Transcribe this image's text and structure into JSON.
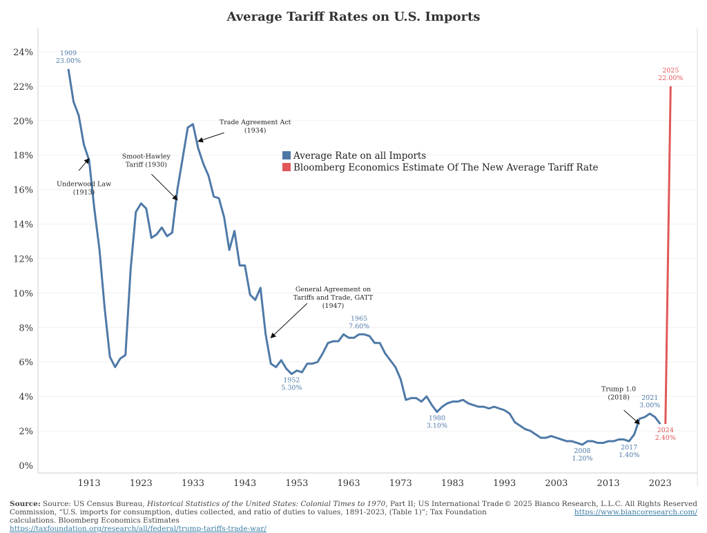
{
  "chart_data": {
    "type": "line",
    "title": "Average Tariff Rates on U.S. Imports",
    "xlabel": "",
    "ylabel": "",
    "xlim": [
      1905,
      2030
    ],
    "ylim": [
      0,
      24
    ],
    "grid": true,
    "x_ticks": [
      1913,
      1923,
      1933,
      1943,
      1953,
      1963,
      1973,
      1983,
      1993,
      2003,
      2013,
      2023
    ],
    "y_ticks": [
      0,
      2,
      4,
      6,
      8,
      10,
      12,
      14,
      16,
      18,
      20,
      22,
      24
    ],
    "y_tick_labels": [
      "0%",
      "2%",
      "4%",
      "6%",
      "8%",
      "10%",
      "12%",
      "14%",
      "16%",
      "18%",
      "20%",
      "22%",
      "24%"
    ],
    "legend_position": "center",
    "series": [
      {
        "name": "Average Rate on all Imports",
        "color": "#4e79a7",
        "x": [
          1909,
          1910,
          1911,
          1912,
          1913,
          1914,
          1915,
          1916,
          1917,
          1918,
          1919,
          1920,
          1921,
          1922,
          1923,
          1924,
          1925,
          1926,
          1927,
          1928,
          1929,
          1930,
          1931,
          1932,
          1933,
          1934,
          1935,
          1936,
          1937,
          1938,
          1939,
          1940,
          1941,
          1942,
          1943,
          1944,
          1945,
          1946,
          1947,
          1948,
          1949,
          1950,
          1951,
          1952,
          1953,
          1954,
          1955,
          1956,
          1957,
          1958,
          1959,
          1960,
          1961,
          1962,
          1963,
          1964,
          1965,
          1966,
          1967,
          1968,
          1969,
          1970,
          1971,
          1972,
          1973,
          1974,
          1975,
          1976,
          1977,
          1978,
          1979,
          1980,
          1981,
          1982,
          1983,
          1984,
          1985,
          1986,
          1987,
          1988,
          1989,
          1990,
          1991,
          1992,
          1993,
          1994,
          1995,
          1996,
          1997,
          1998,
          1999,
          2000,
          2001,
          2002,
          2003,
          2004,
          2005,
          2006,
          2007,
          2008,
          2009,
          2010,
          2011,
          2012,
          2013,
          2014,
          2015,
          2016,
          2017,
          2018,
          2019,
          2020,
          2021,
          2022,
          2023
        ],
        "values": [
          23.0,
          21.1,
          20.3,
          18.6,
          17.7,
          14.9,
          12.5,
          9.1,
          6.3,
          5.7,
          6.2,
          6.4,
          11.4,
          14.7,
          15.2,
          14.9,
          13.2,
          13.4,
          13.8,
          13.3,
          13.5,
          16.0,
          17.8,
          19.6,
          19.8,
          18.4,
          17.5,
          16.8,
          15.6,
          15.5,
          14.4,
          12.5,
          13.6,
          11.6,
          11.6,
          9.9,
          9.6,
          10.3,
          7.6,
          5.9,
          5.7,
          6.1,
          5.6,
          5.3,
          5.5,
          5.4,
          5.9,
          5.9,
          6.0,
          6.5,
          7.1,
          7.2,
          7.2,
          7.6,
          7.4,
          7.4,
          7.6,
          7.6,
          7.5,
          7.1,
          7.1,
          6.5,
          6.1,
          5.7,
          5.0,
          3.8,
          3.9,
          3.9,
          3.7,
          4.0,
          3.5,
          3.1,
          3.4,
          3.6,
          3.7,
          3.7,
          3.8,
          3.6,
          3.5,
          3.4,
          3.4,
          3.3,
          3.4,
          3.3,
          3.2,
          3.0,
          2.5,
          2.3,
          2.1,
          2.0,
          1.8,
          1.6,
          1.6,
          1.7,
          1.6,
          1.5,
          1.4,
          1.4,
          1.3,
          1.2,
          1.4,
          1.4,
          1.3,
          1.3,
          1.4,
          1.4,
          1.5,
          1.5,
          1.4,
          1.8,
          2.7,
          2.8,
          3.0,
          2.8,
          2.4
        ]
      },
      {
        "name": "Bloomberg Economics Estimate Of The New Average Tariff Rate",
        "color": "#e15759",
        "x": [
          2024,
          2025
        ],
        "values": [
          2.4,
          22.0
        ]
      }
    ],
    "point_labels": [
      {
        "year": "1909",
        "value": "23.00%",
        "x": 1909,
        "y": 23.0,
        "color": "#4e79a7",
        "pos": "above"
      },
      {
        "year": "1952",
        "value": "5.30%",
        "x": 1952,
        "y": 5.3,
        "color": "#4e79a7",
        "pos": "below"
      },
      {
        "year": "1965",
        "value": "7.60%",
        "x": 1965,
        "y": 7.6,
        "color": "#4e79a7",
        "pos": "above"
      },
      {
        "year": "1980",
        "value": "3.10%",
        "x": 1980,
        "y": 3.1,
        "color": "#4e79a7",
        "pos": "below"
      },
      {
        "year": "2008",
        "value": "1.20%",
        "x": 2008,
        "y": 1.2,
        "color": "#4e79a7",
        "pos": "below"
      },
      {
        "year": "2017",
        "value": "1.40%",
        "x": 2017,
        "y": 1.4,
        "color": "#4e79a7",
        "pos": "below"
      },
      {
        "year": "2021",
        "value": "3.00%",
        "x": 2021,
        "y": 3.0,
        "color": "#4e79a7",
        "pos": "above"
      },
      {
        "year": "2024",
        "value": "2.40%",
        "x": 2024,
        "y": 2.4,
        "color": "#e15759",
        "pos": "below"
      },
      {
        "year": "2025",
        "value": "22.00%",
        "x": 2025,
        "y": 22.0,
        "color": "#e15759",
        "pos": "above"
      }
    ],
    "annotations": [
      {
        "lines": [
          "Underwood Law",
          "(1913)"
        ],
        "text_at": [
          1912,
          16.2
        ],
        "arrow_from": [
          1911,
          17.1
        ],
        "arrow_to": [
          1913,
          17.8
        ]
      },
      {
        "lines": [
          "Smoot-Hawley",
          "Tariff (1930)"
        ],
        "text_at": [
          1924,
          17.8
        ],
        "arrow_from": [
          1925,
          16.9
        ],
        "arrow_to": [
          1930,
          15.4
        ]
      },
      {
        "lines": [
          "Trade Agreement Act",
          "(1934)"
        ],
        "text_at": [
          1945,
          19.8
        ],
        "arrow_from": [
          1939,
          19.3
        ],
        "arrow_to": [
          1934,
          18.8
        ]
      },
      {
        "lines": [
          "General Agreement on",
          "Tariffs and Trade, GATT",
          "(1947)"
        ],
        "text_at": [
          1960,
          10.1
        ],
        "arrow_from": [
          1955,
          9.4
        ],
        "arrow_to": [
          1948,
          7.4
        ]
      },
      {
        "lines": [
          "Trump 1.0",
          "(2018)"
        ],
        "text_at": [
          2015,
          4.3
        ],
        "arrow_from": [
          2016,
          3.2
        ],
        "arrow_to": [
          2019,
          2.4
        ]
      }
    ]
  },
  "footer": {
    "source_label": "Source:",
    "source_text_1": " Source: US Census Bureau, ",
    "source_italic": "Historical Statistics of the United States: Colonial Times to 1970",
    "source_text_2": ", Part II; US International Trade Commission, “U.S. imports for consumption, duties collected, and ratio of duties to values, 1891-2023, (Table 1)”; Tax Foundation calculations. Bloomberg Economics Estimates",
    "source_link": "https://taxfoundation.org/research/all/federal/trump-tariffs-trade-war/",
    "copyright": "© 2025 Bianco Research, L.L.C. All Rights Reserved",
    "site_link": "https://www.biancoresearch.com/"
  }
}
